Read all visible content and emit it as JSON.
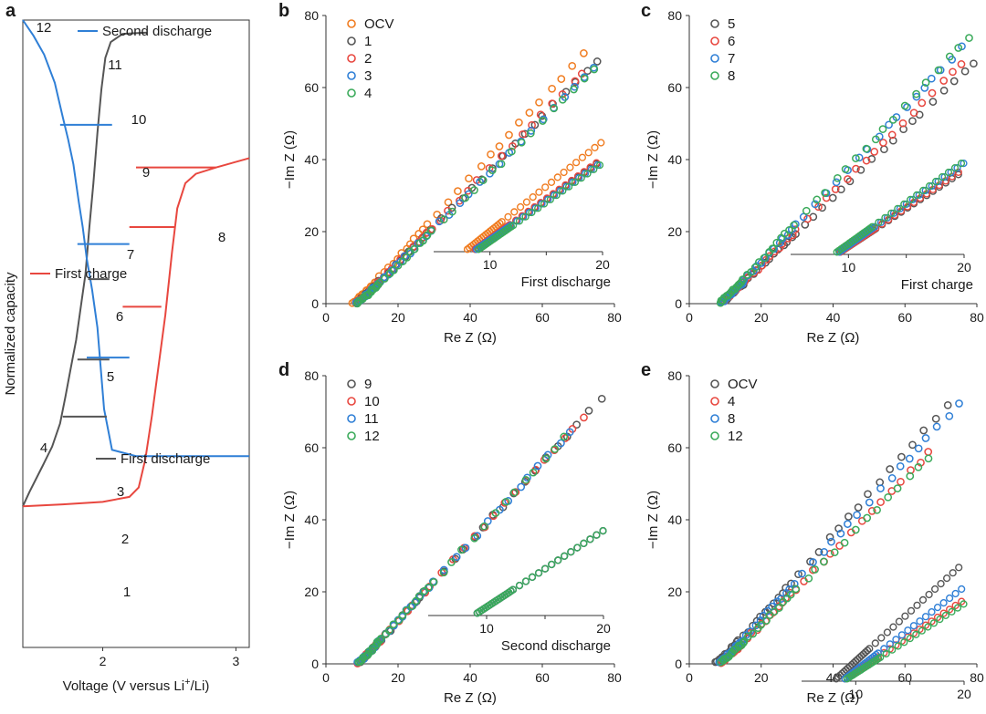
{
  "chart_data": [
    {
      "panel": "a",
      "type": "line",
      "xlabel_pre": "Voltage (V versus Li",
      "xlabel_sup": "+",
      "xlabel_post": "/Li)",
      "ylabel": "Normalized capacity",
      "xticks": [
        "2",
        "3"
      ],
      "xlim": [
        1.4,
        3.1
      ],
      "ylim": [
        0,
        1
      ],
      "series": [
        {
          "name": "First discharge",
          "color": "#555555",
          "x": [
            1.4,
            1.45,
            1.55,
            1.62,
            1.68,
            1.72,
            1.76,
            1.8,
            1.84,
            1.87,
            1.9,
            1.93,
            1.96,
            1.99,
            2.02,
            2.06,
            2.15,
            2.33
          ],
          "y": [
            0.775,
            0.752,
            0.71,
            0.68,
            0.643,
            0.6,
            0.555,
            0.51,
            0.45,
            0.405,
            0.33,
            0.26,
            0.18,
            0.11,
            0.06,
            0.035,
            0.022,
            0.02
          ]
        },
        {
          "name": "First charge",
          "color": "#e8473f",
          "x": [
            1.4,
            1.7,
            2.0,
            2.2,
            2.27,
            2.32,
            2.37,
            2.42,
            2.47,
            2.52,
            2.56,
            2.62,
            2.7,
            2.85,
            3.1
          ],
          "y": [
            0.775,
            0.772,
            0.768,
            0.76,
            0.745,
            0.7,
            0.63,
            0.55,
            0.47,
            0.37,
            0.3,
            0.26,
            0.245,
            0.235,
            0.22
          ]
        },
        {
          "name": "Second discharge",
          "color": "#2f7fd6",
          "x": [
            1.4,
            1.48,
            1.56,
            1.64,
            1.7,
            1.74,
            1.78,
            1.82,
            1.85,
            1.88,
            1.92,
            1.96,
            2.01,
            2.07,
            2.25,
            3.1
          ],
          "y": [
            0.0,
            0.025,
            0.055,
            0.1,
            0.155,
            0.19,
            0.23,
            0.29,
            0.33,
            0.38,
            0.43,
            0.49,
            0.62,
            0.685,
            0.695,
            0.695
          ]
        }
      ],
      "markers": [
        {
          "label": "1",
          "color": "#555555",
          "x": 1.89,
          "y": 0.413,
          "x2": 2.05
        },
        {
          "label": "2",
          "color": "#555555",
          "x": 1.81,
          "y": 0.541,
          "x2": 2.05
        },
        {
          "label": "3",
          "color": "#555555",
          "x": 1.7,
          "y": 0.632,
          "x2": 2.03
        },
        {
          "label": "5",
          "color": "#e8473f",
          "x": 2.44,
          "y": 0.457,
          "x2": 2.15
        },
        {
          "label": "6",
          "color": "#e8473f",
          "x": 2.54,
          "y": 0.33,
          "x2": 2.2
        },
        {
          "label": "7",
          "color": "#e8473f",
          "x": 2.85,
          "y": 0.235,
          "x2": 2.25
        },
        {
          "label": "9",
          "color": "#2f7fd6",
          "x": 1.88,
          "y": 0.538,
          "x2": 2.2
        },
        {
          "label": "10",
          "color": "#2f7fd6",
          "x": 1.81,
          "y": 0.357,
          "x2": 2.2
        },
        {
          "label": "11",
          "color": "#2f7fd6",
          "x": 1.68,
          "y": 0.167,
          "x2": 2.07
        }
      ],
      "annotations": [
        {
          "text": "12",
          "x": 1.5,
          "y": 0.97
        },
        {
          "text": "8",
          "x": 2.95,
          "y": 0.75
        },
        {
          "text": "4",
          "x": 1.5,
          "y": 0.215
        },
        {
          "text": "7",
          "x": 2.07,
          "y": 0.735
        },
        {
          "text": "6",
          "x": 2.07,
          "y": 0.62
        },
        {
          "text": "5",
          "x": 2.07,
          "y": 0.527
        },
        {
          "text": "3",
          "x": 2.07,
          "y": 0.358
        },
        {
          "text": "2",
          "x": 2.07,
          "y": 0.26
        },
        {
          "text": "1",
          "x": 2.07,
          "y": 0.137
        },
        {
          "text": "11",
          "x": 2.1,
          "y": 0.165
        },
        {
          "text": "10",
          "x": 2.1,
          "y": 0.345
        },
        {
          "text": "9",
          "x": 2.1,
          "y": 0.525
        }
      ],
      "legend": [
        {
          "label": "Second discharge",
          "color": "#2f7fd6"
        },
        {
          "label": "First charge",
          "color": "#e8473f"
        },
        {
          "label": "First discharge",
          "color": "#555555"
        }
      ]
    },
    {
      "panel": "b",
      "type": "scatter",
      "xlabel": "Re Z (Ω)",
      "ylabel": "−Im Z (Ω)",
      "xlim": [
        0,
        80
      ],
      "ylim": [
        0,
        80
      ],
      "xticks": [
        0,
        20,
        40,
        60,
        80
      ],
      "yticks": [
        0,
        20,
        40,
        60,
        80
      ],
      "inset": {
        "xlim": [
          5,
          20
        ],
        "xticks": [
          10,
          20
        ],
        "caption": "First discharge"
      },
      "series": [
        {
          "name": "OCV",
          "color": "#f07c20",
          "x0": 7.5,
          "slope": 1.1,
          "bend": 1.2,
          "xmax": 73,
          "inset_x0": 8.0,
          "inset_slope": 0.85
        },
        {
          "name": "1",
          "color": "#555555",
          "x0": 8.5,
          "slope": 1.02,
          "bend": 0.8,
          "xmax": 77,
          "inset_x0": 8.7,
          "inset_slope": 0.75
        },
        {
          "name": "2",
          "color": "#e8473f",
          "x0": 8.5,
          "slope": 1.03,
          "bend": 0.8,
          "xmax": 73,
          "inset_x0": 8.7,
          "inset_slope": 0.76
        },
        {
          "name": "3",
          "color": "#2f7fd6",
          "x0": 8.6,
          "slope": 1.0,
          "bend": 0.8,
          "xmax": 77,
          "inset_x0": 8.8,
          "inset_slope": 0.74
        },
        {
          "name": "4",
          "color": "#3aaa5a",
          "x0": 8.8,
          "slope": 1.0,
          "bend": 0.8,
          "xmax": 75,
          "inset_x0": 9.0,
          "inset_slope": 0.74
        }
      ]
    },
    {
      "panel": "c",
      "type": "scatter",
      "xlabel": "Re Z (Ω)",
      "ylabel": "−Im Z (Ω)",
      "xlim": [
        0,
        80
      ],
      "ylim": [
        0,
        80
      ],
      "xticks": [
        0,
        20,
        40,
        60,
        80
      ],
      "yticks": [
        0,
        20,
        40,
        60,
        80
      ],
      "inset": {
        "xlim": [
          5,
          20
        ],
        "xticks": [
          10,
          20
        ],
        "caption": "First charge"
      },
      "series": [
        {
          "name": "5",
          "color": "#555555",
          "x0": 9.0,
          "slope": 0.96,
          "bend": 0.6,
          "xmax": 79,
          "inset_x0": 9.3,
          "inset_slope": 0.7
        },
        {
          "name": "6",
          "color": "#e8473f",
          "x0": 9.0,
          "slope": 1.0,
          "bend": 0.6,
          "xmax": 76,
          "inset_x0": 9.3,
          "inset_slope": 0.72
        },
        {
          "name": "7",
          "color": "#2f7fd6",
          "x0": 9.0,
          "slope": 1.07,
          "bend": 0.6,
          "xmax": 79,
          "inset_x0": 9.2,
          "inset_slope": 0.76
        },
        {
          "name": "8",
          "color": "#3aaa5a",
          "x0": 8.5,
          "slope": 1.07,
          "bend": 0.6,
          "xmax": 79,
          "inset_x0": 9.0,
          "inset_slope": 0.76
        }
      ]
    },
    {
      "panel": "d",
      "type": "scatter",
      "xlabel": "Re Z (Ω)",
      "ylabel": "−Im Z (Ω)",
      "xlim": [
        0,
        80
      ],
      "ylim": [
        0,
        80
      ],
      "xticks": [
        0,
        20,
        40,
        60,
        80
      ],
      "yticks": [
        0,
        20,
        40,
        60,
        80
      ],
      "inset": {
        "xlim": [
          5,
          20
        ],
        "xticks": [
          10,
          20
        ],
        "caption": "Second discharge"
      },
      "series": [
        {
          "name": "9",
          "color": "#555555",
          "x0": 9.0,
          "slope": 1.1,
          "bend": 0.5,
          "xmax": 78,
          "inset_x0": 9.2,
          "inset_slope": 0.73
        },
        {
          "name": "10",
          "color": "#e8473f",
          "x0": 9.0,
          "slope": 1.1,
          "bend": 0.5,
          "xmax": 72,
          "inset_x0": 9.2,
          "inset_slope": 0.73
        },
        {
          "name": "11",
          "color": "#2f7fd6",
          "x0": 9.0,
          "slope": 1.1,
          "bend": 0.5,
          "xmax": 68,
          "inset_x0": 9.2,
          "inset_slope": 0.73
        },
        {
          "name": "12",
          "color": "#3aaa5a",
          "x0": 9.0,
          "slope": 1.1,
          "bend": 0.5,
          "xmax": 68,
          "inset_x0": 9.2,
          "inset_slope": 0.73
        }
      ]
    },
    {
      "panel": "e",
      "type": "scatter",
      "xlabel": "Re Z (Ω)",
      "ylabel": "−Im Z (Ω)",
      "xlim": [
        0,
        80
      ],
      "ylim": [
        0,
        80
      ],
      "xticks": [
        0,
        20,
        40,
        60,
        80
      ],
      "yticks": [
        0,
        20,
        40,
        60,
        80
      ],
      "inset": {
        "xlim": [
          5,
          20
        ],
        "xticks": [
          10,
          20
        ],
        "caption": ""
      },
      "series": [
        {
          "name": "OCV",
          "color": "#555555",
          "x0": 7.5,
          "slope": 1.13,
          "bend": 1.2,
          "xmax": 73,
          "inset_x0": 8.2,
          "inset_slope": 0.85
        },
        {
          "name": "4",
          "color": "#e8473f",
          "x0": 8.8,
          "slope": 1.02,
          "bend": 0.8,
          "xmax": 67,
          "inset_x0": 9.0,
          "inset_slope": 0.62
        },
        {
          "name": "8",
          "color": "#2f7fd6",
          "x0": 8.5,
          "slope": 1.09,
          "bend": 0.6,
          "xmax": 76,
          "inset_x0": 9.0,
          "inset_slope": 0.72
        },
        {
          "name": "12",
          "color": "#3aaa5a",
          "x0": 9.0,
          "slope": 1.0,
          "bend": 0.5,
          "xmax": 67,
          "inset_x0": 9.2,
          "inset_slope": 0.6
        }
      ]
    }
  ],
  "panel_labels": [
    "a",
    "b",
    "c",
    "d",
    "e"
  ]
}
